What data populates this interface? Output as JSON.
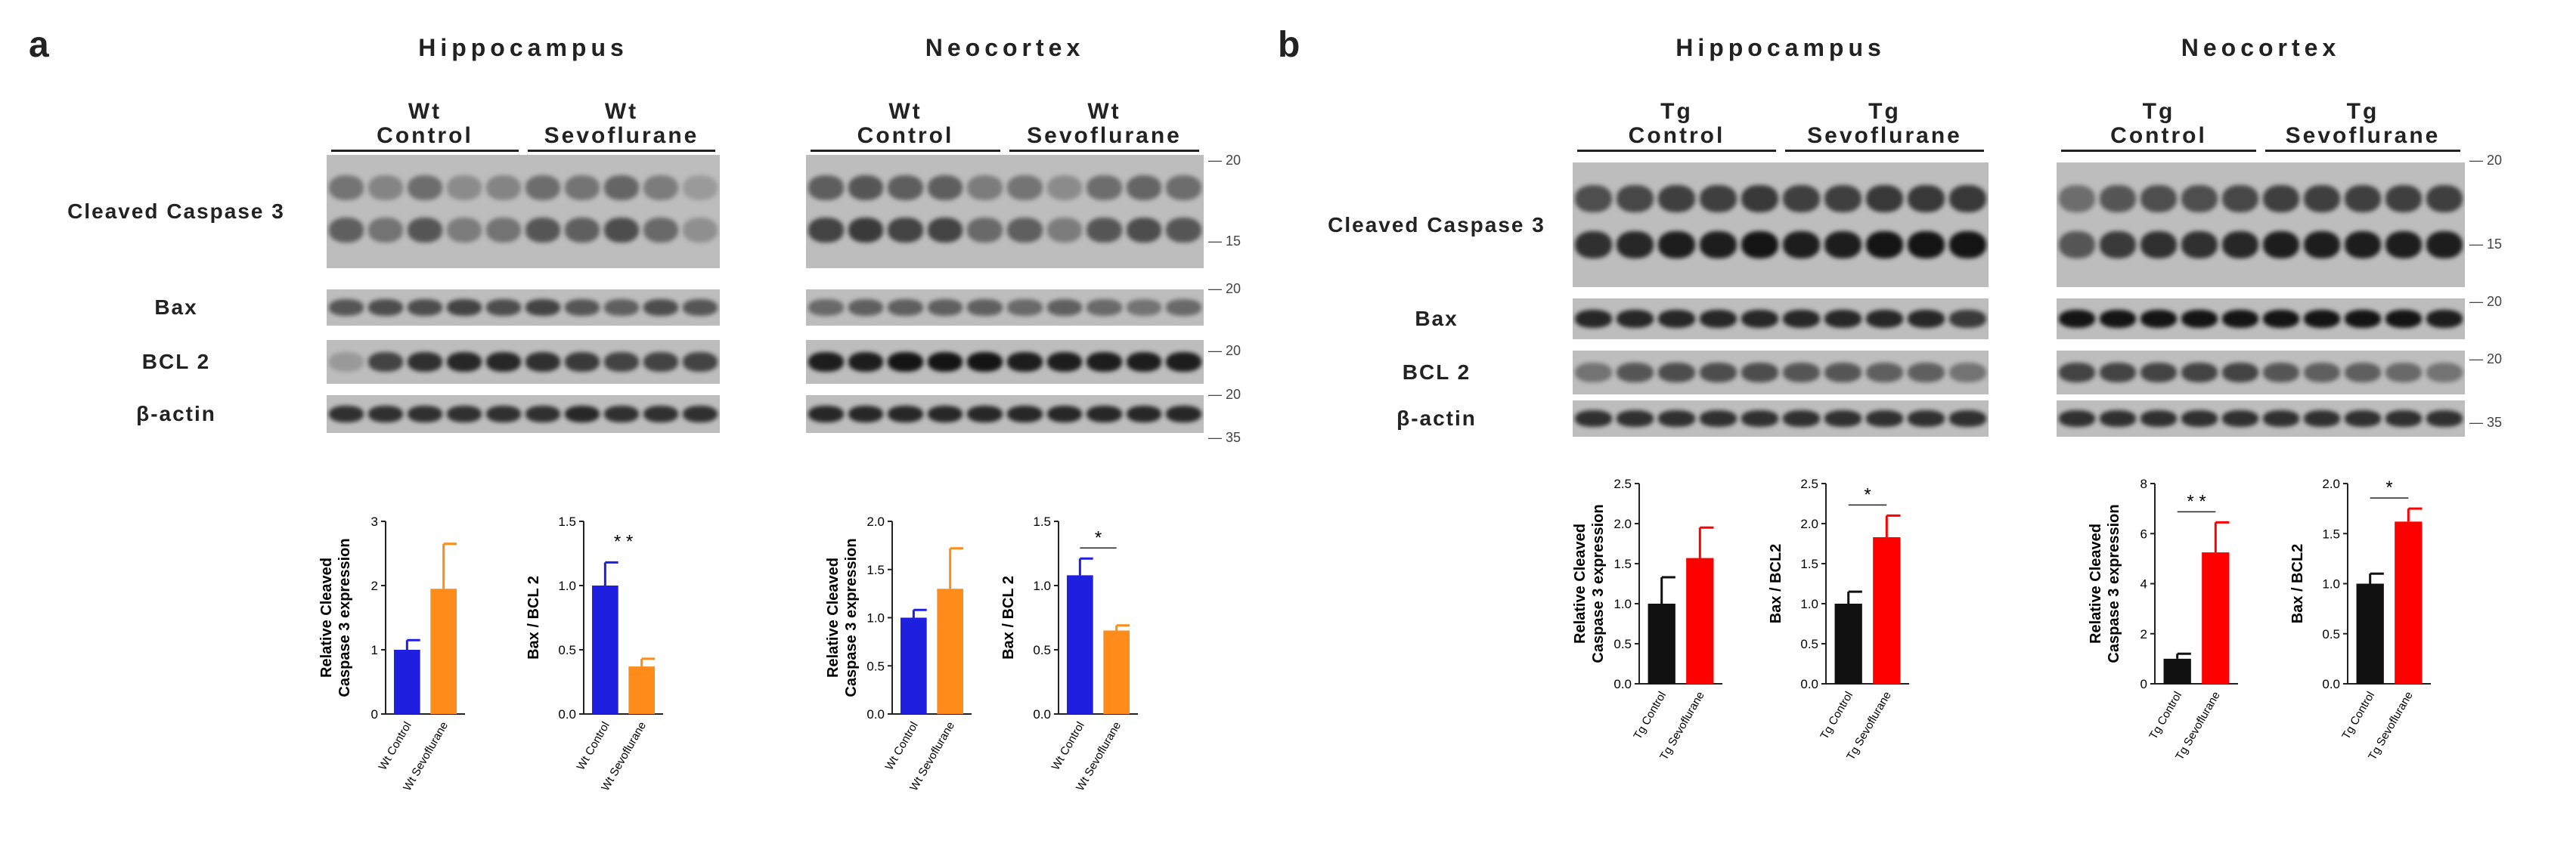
{
  "panels": [
    {
      "letter": "a",
      "regions": [
        {
          "title": "Hippocampus",
          "groups": [
            "Wt\nControl",
            "Wt\nSevoflurane"
          ],
          "lanes": 10,
          "show_row_labels": true,
          "mw_markers": [],
          "blots": [
            {
              "label": "Cleaved Caspase 3",
              "bands": [
                0.55,
                0.45,
                0.6,
                0.4,
                0.45,
                0.6,
                0.55,
                0.65,
                0.5,
                0.3
              ]
            },
            {
              "label": "Bax",
              "bands": [
                0.6,
                0.65,
                0.65,
                0.7,
                0.65,
                0.7,
                0.6,
                0.55,
                0.65,
                0.6
              ]
            },
            {
              "label": "BCL 2",
              "bands": [
                0.25,
                0.7,
                0.8,
                0.85,
                0.85,
                0.8,
                0.75,
                0.7,
                0.7,
                0.7
              ]
            },
            {
              "label": "β-actin",
              "bands": [
                0.8,
                0.8,
                0.8,
                0.8,
                0.8,
                0.8,
                0.85,
                0.8,
                0.8,
                0.8
              ]
            }
          ]
        },
        {
          "title": "Neocortex",
          "groups": [
            "Wt\nControl",
            "Wt\nSevoflurane"
          ],
          "lanes": 10,
          "show_row_labels": false,
          "mw_markers": [
            "20",
            "15",
            "20",
            "20",
            "20",
            "35"
          ],
          "blots": [
            {
              "label": "Cleaved Caspase 3",
              "bands": [
                0.7,
                0.75,
                0.7,
                0.7,
                0.5,
                0.55,
                0.4,
                0.6,
                0.65,
                0.6
              ]
            },
            {
              "label": "Bax",
              "bands": [
                0.5,
                0.55,
                0.55,
                0.55,
                0.55,
                0.5,
                0.55,
                0.5,
                0.45,
                0.5
              ]
            },
            {
              "label": "BCL 2",
              "bands": [
                0.9,
                0.9,
                0.95,
                0.95,
                0.95,
                0.9,
                0.9,
                0.9,
                0.9,
                0.9
              ]
            },
            {
              "label": "β-actin",
              "bands": [
                0.85,
                0.85,
                0.85,
                0.85,
                0.85,
                0.85,
                0.85,
                0.85,
                0.85,
                0.85
              ]
            }
          ]
        }
      ],
      "charts": [
        {
          "ylabel": "Relative Cleaved\nCaspase 3 expression",
          "ylim": [
            0,
            3
          ],
          "ticks": [
            "0",
            "1",
            "2",
            "3"
          ],
          "categories": [
            "Wt Control",
            "Wt Sevoflurane"
          ],
          "values": [
            1.0,
            1.95
          ],
          "errors": [
            0.15,
            0.7
          ],
          "colors": [
            "#1f1fe0",
            "#ff8c1a"
          ],
          "sig": ""
        },
        {
          "ylabel": "Bax / BCL 2",
          "ylim": [
            0,
            1.5
          ],
          "ticks": [
            "0.0",
            "0.5",
            "1.0",
            "1.5"
          ],
          "categories": [
            "Wt Control",
            "Wt Sevoflurane"
          ],
          "values": [
            1.0,
            0.37
          ],
          "errors": [
            0.18,
            0.06
          ],
          "colors": [
            "#1f1fe0",
            "#ff8c1a"
          ],
          "sig": "* *"
        },
        {
          "ylabel": "Relative Cleaved\nCaspase 3 expression",
          "ylim": [
            0,
            2.0
          ],
          "ticks": [
            "0.0",
            "0.5",
            "1.0",
            "1.5",
            "2.0"
          ],
          "categories": [
            "Wt Control",
            "Wt Sevoflurane"
          ],
          "values": [
            1.0,
            1.3
          ],
          "errors": [
            0.08,
            0.42
          ],
          "colors": [
            "#1f1fe0",
            "#ff8c1a"
          ],
          "sig": ""
        },
        {
          "ylabel": "Bax / BCL 2",
          "ylim": [
            0,
            1.5
          ],
          "ticks": [
            "0.0",
            "0.5",
            "1.0",
            "1.5"
          ],
          "categories": [
            "Wt Control",
            "Wt Sevoflurane"
          ],
          "values": [
            1.08,
            0.65
          ],
          "errors": [
            0.13,
            0.04
          ],
          "colors": [
            "#1f1fe0",
            "#ff8c1a"
          ],
          "sig": "*"
        }
      ]
    },
    {
      "letter": "b",
      "regions": [
        {
          "title": "Hippocampus",
          "groups": [
            "Tg\nControl",
            "Tg\nSevoflurane"
          ],
          "lanes": 10,
          "show_row_labels": true,
          "mw_markers": [],
          "blots": [
            {
              "label": "Cleaved Caspase 3",
              "bands": [
                0.8,
                0.85,
                0.9,
                0.9,
                0.95,
                0.9,
                0.9,
                0.95,
                0.95,
                0.95
              ]
            },
            {
              "label": "Bax",
              "bands": [
                0.85,
                0.85,
                0.85,
                0.85,
                0.85,
                0.85,
                0.85,
                0.85,
                0.85,
                0.75
              ]
            },
            {
              "label": "BCL 2",
              "bands": [
                0.45,
                0.6,
                0.65,
                0.65,
                0.65,
                0.6,
                0.6,
                0.55,
                0.55,
                0.45
              ]
            },
            {
              "label": "β-actin",
              "bands": [
                0.8,
                0.8,
                0.8,
                0.8,
                0.8,
                0.8,
                0.8,
                0.8,
                0.8,
                0.8
              ]
            }
          ]
        },
        {
          "title": "Neocortex",
          "groups": [
            "Tg\nControl",
            "Tg\nSevoflurane"
          ],
          "lanes": 10,
          "show_row_labels": false,
          "mw_markers": [
            "20",
            "15",
            "20",
            "20",
            "35"
          ],
          "blots": [
            {
              "label": "Cleaved Caspase 3",
              "bands": [
                0.6,
                0.75,
                0.8,
                0.8,
                0.85,
                0.9,
                0.9,
                0.9,
                0.9,
                0.9
              ]
            },
            {
              "label": "Bax",
              "bands": [
                0.95,
                0.95,
                0.95,
                0.95,
                0.95,
                0.95,
                0.95,
                0.95,
                0.95,
                0.9
              ]
            },
            {
              "label": "BCL 2",
              "bands": [
                0.7,
                0.7,
                0.7,
                0.7,
                0.7,
                0.6,
                0.55,
                0.55,
                0.5,
                0.45
              ]
            },
            {
              "label": "β-actin",
              "bands": [
                0.8,
                0.8,
                0.8,
                0.8,
                0.8,
                0.8,
                0.8,
                0.8,
                0.8,
                0.8
              ]
            }
          ]
        }
      ],
      "charts": [
        {
          "ylabel": "Relative Cleaved\nCaspase 3 expression",
          "ylim": [
            0,
            2.5
          ],
          "ticks": [
            "0.0",
            "0.5",
            "1.0",
            "1.5",
            "2.0",
            "2.5"
          ],
          "categories": [
            "Tg Control",
            "Tg Sevoflurane"
          ],
          "values": [
            1.0,
            1.57
          ],
          "errors": [
            0.33,
            0.38
          ],
          "colors": [
            "#111111",
            "#ff0000"
          ],
          "sig": ""
        },
        {
          "ylabel": "Bax / BCL2",
          "ylim": [
            0,
            2.5
          ],
          "ticks": [
            "0.0",
            "0.5",
            "1.0",
            "1.5",
            "2.0",
            "2.5"
          ],
          "categories": [
            "Tg Control",
            "Tg Sevoflurane"
          ],
          "values": [
            1.0,
            1.83
          ],
          "errors": [
            0.15,
            0.27
          ],
          "colors": [
            "#111111",
            "#ff0000"
          ],
          "sig": "*"
        },
        {
          "ylabel": "Relative Cleaved\nCaspase 3 expression",
          "ylim": [
            0,
            8
          ],
          "ticks": [
            "0",
            "2",
            "4",
            "6",
            "8"
          ],
          "categories": [
            "Tg Control",
            "Tg Sevoflurane"
          ],
          "values": [
            1.0,
            5.25
          ],
          "errors": [
            0.2,
            1.2
          ],
          "colors": [
            "#111111",
            "#ff0000"
          ],
          "sig": "* *"
        },
        {
          "ylabel": "Bax / BCL2",
          "ylim": [
            0,
            2.0
          ],
          "ticks": [
            "0.0",
            "0.5",
            "1.0",
            "1.5",
            "2.0"
          ],
          "categories": [
            "Tg Control",
            "Tg Sevoflurane"
          ],
          "values": [
            1.0,
            1.62
          ],
          "errors": [
            0.1,
            0.13
          ],
          "colors": [
            "#111111",
            "#ff0000"
          ],
          "sig": "*"
        }
      ]
    }
  ]
}
